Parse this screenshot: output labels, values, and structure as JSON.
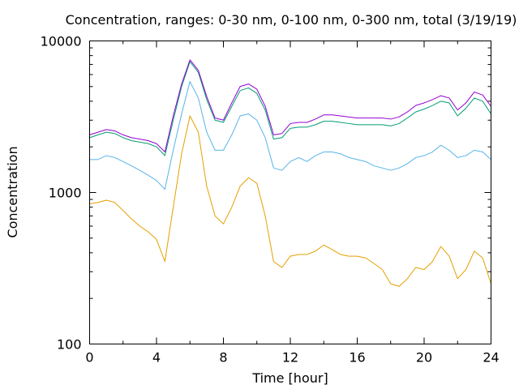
{
  "chart_data": {
    "type": "line",
    "title": "Concentration, ranges: 0-30 nm, 0-100 nm, 0-300 nm, total (3/19/19)",
    "xlabel": "Time [hour]",
    "ylabel": "Concentration",
    "xlim": [
      0,
      24
    ],
    "ylim": [
      100,
      10000
    ],
    "yscale": "log",
    "grid": false,
    "legend": "none",
    "x_ticks": [
      "0",
      "4",
      "8",
      "12",
      "16",
      "20",
      "24"
    ],
    "y_ticks": [
      "100",
      "1000",
      "10000"
    ],
    "x": [
      0,
      0.5,
      1,
      1.5,
      2,
      2.5,
      3,
      3.5,
      4,
      4.5,
      5,
      5.5,
      6,
      6.5,
      7,
      7.5,
      8,
      8.5,
      9,
      9.5,
      10,
      10.5,
      11,
      11.5,
      12,
      12.5,
      13,
      13.5,
      14,
      14.5,
      15,
      15.5,
      16,
      16.5,
      17,
      17.5,
      18,
      18.5,
      19,
      19.5,
      20,
      20.5,
      21,
      21.5,
      22,
      22.5,
      23,
      23.5,
      24
    ],
    "series": [
      {
        "color": "#e69f00",
        "values": [
          840,
          860,
          890,
          860,
          760,
          670,
          600,
          550,
          490,
          350,
          800,
          1800,
          3200,
          2500,
          1100,
          700,
          620,
          800,
          1100,
          1250,
          1150,
          700,
          350,
          320,
          380,
          390,
          390,
          410,
          450,
          420,
          390,
          380,
          380,
          370,
          340,
          310,
          250,
          240,
          270,
          320,
          310,
          350,
          440,
          380,
          270,
          310,
          410,
          370,
          250
        ]
      },
      {
        "color": "#56b4e9",
        "values": [
          1650,
          1650,
          1750,
          1700,
          1600,
          1500,
          1400,
          1300,
          1200,
          1050,
          1900,
          3300,
          5400,
          4200,
          2500,
          1900,
          1900,
          2400,
          3200,
          3300,
          3000,
          2300,
          1450,
          1400,
          1600,
          1700,
          1600,
          1750,
          1850,
          1850,
          1800,
          1700,
          1650,
          1600,
          1500,
          1450,
          1400,
          1450,
          1550,
          1700,
          1750,
          1850,
          2050,
          1900,
          1700,
          1750,
          1900,
          1850,
          1650
        ]
      },
      {
        "color": "#009e73",
        "values": [
          2300,
          2400,
          2500,
          2450,
          2300,
          2200,
          2150,
          2100,
          2000,
          1750,
          3000,
          5000,
          7300,
          6200,
          4100,
          3000,
          2900,
          3700,
          4700,
          4900,
          4500,
          3500,
          2250,
          2300,
          2650,
          2700,
          2700,
          2800,
          2950,
          2950,
          2900,
          2850,
          2800,
          2800,
          2800,
          2800,
          2750,
          2850,
          3100,
          3400,
          3550,
          3750,
          4000,
          3900,
          3200,
          3600,
          4200,
          4000,
          3300
        ]
      },
      {
        "color": "#9400d3",
        "values": [
          2400,
          2500,
          2600,
          2550,
          2400,
          2300,
          2250,
          2200,
          2100,
          1850,
          3200,
          5200,
          7500,
          6400,
          4300,
          3100,
          3000,
          3900,
          5000,
          5200,
          4800,
          3700,
          2400,
          2450,
          2850,
          2900,
          2900,
          3050,
          3250,
          3250,
          3200,
          3150,
          3100,
          3100,
          3100,
          3100,
          3050,
          3150,
          3400,
          3750,
          3900,
          4100,
          4350,
          4200,
          3500,
          3900,
          4600,
          4400,
          3700
        ]
      }
    ]
  }
}
